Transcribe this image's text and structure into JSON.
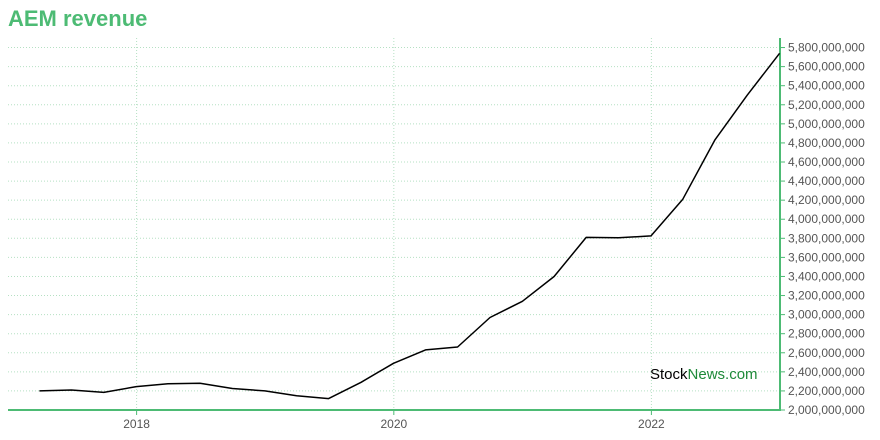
{
  "chart_data": {
    "type": "line",
    "title": "AEM revenue",
    "xlabel": "",
    "ylabel": "",
    "x_ticks": [
      "2018",
      "2020",
      "2022"
    ],
    "y_ticks": [
      2000000000,
      2200000000,
      2400000000,
      2600000000,
      2800000000,
      3000000000,
      3200000000,
      3400000000,
      3600000000,
      3800000000,
      4000000000,
      4200000000,
      4400000000,
      4600000000,
      4800000000,
      5000000000,
      5200000000,
      5400000000,
      5600000000,
      5800000000
    ],
    "y_tick_labels": [
      "2,000,000,000",
      "2,200,000,000",
      "2,400,000,000",
      "2,600,000,000",
      "2,800,000,000",
      "3,000,000,000",
      "3,200,000,000",
      "3,400,000,000",
      "3,600,000,000",
      "3,800,000,000",
      "4,000,000,000",
      "4,200,000,000",
      "4,400,000,000",
      "4,600,000,000",
      "4,800,000,000",
      "5,000,000,000",
      "5,200,000,000",
      "5,400,000,000",
      "5,600,000,000",
      "5,800,000,000"
    ],
    "ylim": [
      2000000000,
      5900000000
    ],
    "xlim": [
      "2017-01-01",
      "2023-01-01"
    ],
    "grid": true,
    "series": [
      {
        "x": [
          "2017-03-31",
          "2017-06-30",
          "2017-09-30",
          "2017-12-31",
          "2018-03-31",
          "2018-06-30",
          "2018-09-30",
          "2018-12-31",
          "2019-03-31",
          "2019-06-30",
          "2019-09-30",
          "2019-12-31",
          "2020-03-31",
          "2020-06-30",
          "2020-09-30",
          "2020-12-31",
          "2021-03-31",
          "2021-06-30",
          "2021-09-30",
          "2021-12-31",
          "2022-03-31",
          "2022-06-30",
          "2022-09-30",
          "2022-12-31"
        ],
        "values": [
          2200000000,
          2210000000,
          2185000000,
          2245000000,
          2275000000,
          2280000000,
          2225000000,
          2200000000,
          2150000000,
          2120000000,
          2290000000,
          2490000000,
          2630000000,
          2660000000,
          2970000000,
          3140000000,
          3400000000,
          3810000000,
          3805000000,
          3825000000,
          4210000000,
          4830000000,
          5300000000,
          5740000000
        ]
      }
    ],
    "colors": {
      "line": "#000000",
      "title": "#4dbb74",
      "axis": "#4dbb74",
      "grid": "#b5e0c3"
    }
  },
  "watermark": {
    "part1": "Stock",
    "part2": "News",
    "part3": ".com"
  }
}
